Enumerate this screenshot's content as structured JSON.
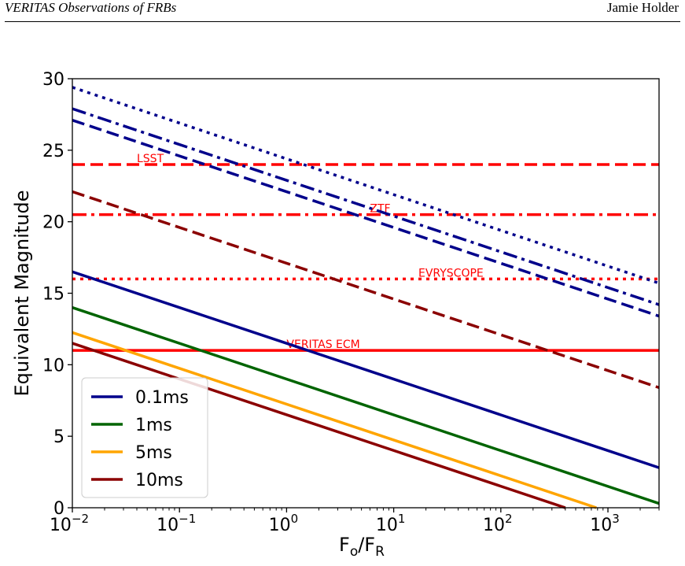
{
  "header": {
    "title": "VERITAS Observations of FRBs",
    "author": "Jamie Holder"
  },
  "chart_data": {
    "type": "line",
    "xlabel": "F",
    "xlabel_sub1": "o",
    "xlabel_slash": "/F",
    "xlabel_sub2": "R",
    "ylabel": "Equivalent Magnitude",
    "xscale": "log",
    "xlim": [
      0.01,
      3000
    ],
    "ylim": [
      0,
      30
    ],
    "yticks": [
      0,
      5,
      10,
      15,
      20,
      25,
      30
    ],
    "xticks": [
      {
        "value": 0.01,
        "base": "10",
        "exp": "−2"
      },
      {
        "value": 0.1,
        "base": "10",
        "exp": "−1"
      },
      {
        "value": 1,
        "base": "10",
        "exp": "0"
      },
      {
        "value": 10,
        "base": "10",
        "exp": "1"
      },
      {
        "value": 100,
        "base": "10",
        "exp": "2"
      },
      {
        "value": 1000,
        "base": "10",
        "exp": "3"
      }
    ],
    "grid": false,
    "legend_position": "lower-left",
    "series": [
      {
        "name": "0.1ms",
        "color": "#00008b",
        "style": "solid",
        "x": [
          0.01,
          3000
        ],
        "y": [
          16.5,
          2.8
        ]
      },
      {
        "name": "1ms",
        "color": "#006400",
        "style": "solid",
        "x": [
          0.01,
          3000
        ],
        "y": [
          14.0,
          0.3
        ]
      },
      {
        "name": "5ms",
        "color": "#ffa500",
        "style": "solid",
        "x": [
          0.01,
          780
        ],
        "y": [
          12.25,
          0
        ]
      },
      {
        "name": "10ms",
        "color": "#8b0000",
        "style": "solid",
        "x": [
          0.01,
          400
        ],
        "y": [
          11.5,
          0
        ]
      },
      {
        "color": "#00008b",
        "style": "dotted",
        "x": [
          0.01,
          3000
        ],
        "y": [
          29.4,
          15.7
        ]
      },
      {
        "color": "#00008b",
        "style": "dashdot",
        "x": [
          0.01,
          3000
        ],
        "y": [
          27.9,
          14.2
        ]
      },
      {
        "color": "#00008b",
        "style": "dashed",
        "x": [
          0.01,
          3000
        ],
        "y": [
          27.1,
          13.4
        ]
      },
      {
        "color": "#8b0000",
        "style": "dashed",
        "x": [
          0.01,
          3000
        ],
        "y": [
          22.1,
          8.4
        ]
      }
    ],
    "reference_lines": [
      {
        "label": "LSST",
        "y": 24.0,
        "style": "dashed",
        "color": "#ff0000",
        "label_x": 0.04
      },
      {
        "label": "ZTF",
        "y": 20.5,
        "style": "dashdot",
        "color": "#ff0000",
        "label_x": 6.0
      },
      {
        "label": "EVRYSCOPE",
        "y": 16.0,
        "style": "dotted",
        "color": "#ff0000",
        "label_x": 17.0
      },
      {
        "label": "VERITAS ECM",
        "y": 11.0,
        "style": "solid",
        "color": "#ff0000",
        "label_x": 1.0
      }
    ]
  }
}
